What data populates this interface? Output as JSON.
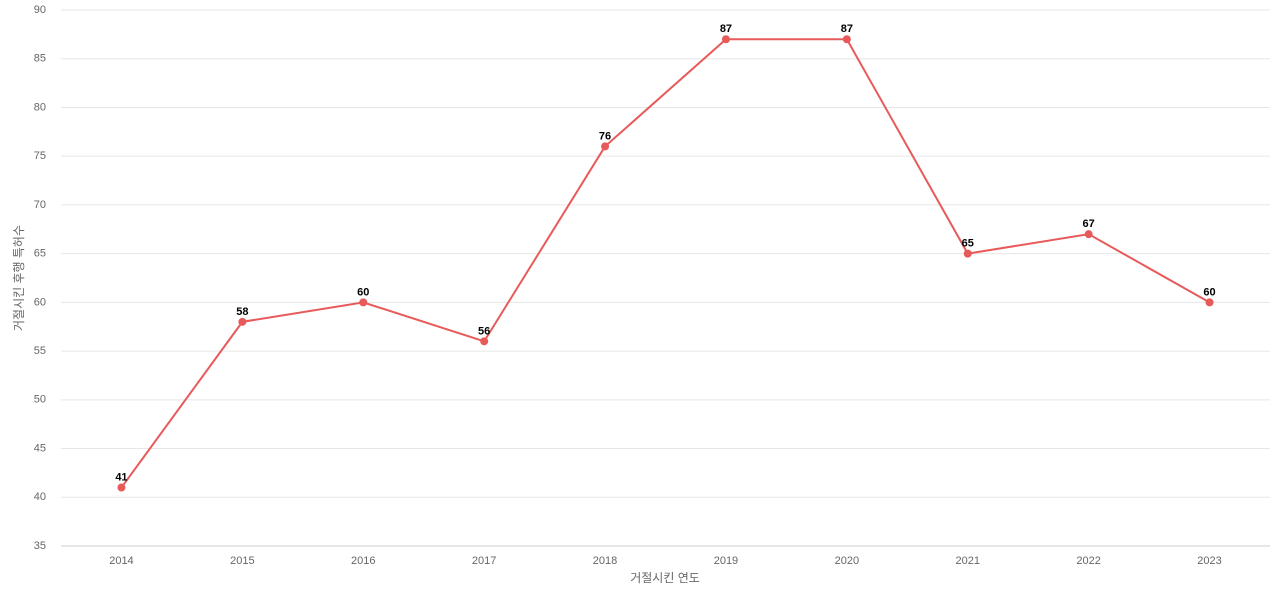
{
  "chart_data": {
    "type": "line",
    "x_label": "거절시킨 연도",
    "y_label": "거절시킨 후행 특허수",
    "categories": [
      "2014",
      "2015",
      "2016",
      "2017",
      "2018",
      "2019",
      "2020",
      "2021",
      "2022",
      "2023"
    ],
    "values": [
      41,
      58,
      60,
      56,
      76,
      87,
      87,
      65,
      67,
      60
    ],
    "color": "#e85a5a",
    "ylim": [
      35,
      90
    ],
    "yticks": [
      35,
      40,
      45,
      50,
      55,
      60,
      65,
      70,
      75,
      80,
      85,
      90
    ],
    "grid": true
  }
}
